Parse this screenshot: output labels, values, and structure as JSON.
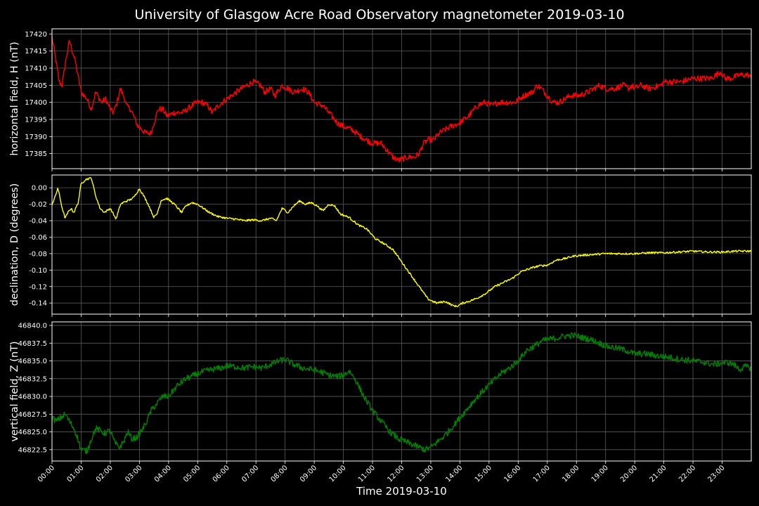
{
  "title": "University of Glasgow Acre Road Observatory magnetometer 2019-03-10",
  "xlabel": "Time 2019-03-10",
  "chart_data": [
    {
      "type": "line",
      "title": "University of Glasgow Acre Road Observatory magnetometer 2019-03-10",
      "ylabel": "horizontal field, H (nT)",
      "color": "#ff0000",
      "ylim": [
        17380.6,
        17421.5
      ],
      "yticks": [
        17385,
        17390,
        17395,
        17400,
        17405,
        17410,
        17415,
        17420
      ],
      "ytick_decimals": 0,
      "noise": 0.9,
      "x": [
        0,
        0.1,
        0.25,
        0.35,
        0.45,
        0.6,
        0.7,
        0.8,
        1.0,
        1.1,
        1.2,
        1.35,
        1.5,
        1.7,
        1.85,
        2.0,
        2.1,
        2.2,
        2.35,
        2.5,
        2.55,
        2.7,
        2.8,
        2.95,
        3.1,
        3.2,
        3.4,
        3.5,
        3.65,
        3.8,
        3.95,
        4.2,
        4.5,
        4.8,
        5.0,
        5.15,
        5.35,
        5.5,
        5.7,
        6.0,
        6.5,
        6.9,
        7.15,
        7.3,
        7.5,
        7.65,
        7.9,
        8.1,
        8.3,
        8.6,
        8.8,
        9.0,
        9.3,
        9.6,
        9.8,
        10.0,
        10.3,
        10.6,
        11.0,
        11.3,
        11.5,
        11.7,
        11.9,
        12.2,
        12.45,
        12.6,
        12.75,
        12.9,
        13.1,
        13.3,
        13.5,
        13.7,
        14.0,
        14.3,
        14.6,
        14.85,
        15.1,
        15.3,
        15.6,
        15.9,
        16.2,
        16.5,
        16.65,
        16.8,
        17.0,
        17.2,
        17.4,
        17.6,
        17.8,
        18.1,
        18.4,
        18.6,
        18.8,
        19.0,
        19.3,
        19.6,
        19.8,
        19.9,
        20.0,
        20.2,
        20.5,
        20.9,
        21.0,
        21.3,
        21.6,
        22.0,
        22.4,
        22.6,
        22.8,
        22.95,
        23.1,
        23.3,
        23.6,
        23.9,
        24.0
      ],
      "y": [
        17419,
        17414,
        17406,
        17405,
        17411,
        17418,
        17415,
        17412,
        17403,
        17402,
        17401,
        17398,
        17403,
        17400,
        17401,
        17398,
        17397,
        17399,
        17404,
        17401,
        17399,
        17398,
        17396,
        17393,
        17392,
        17391,
        17391,
        17394,
        17398,
        17398,
        17396,
        17397,
        17397,
        17399,
        17400,
        17400,
        17399,
        17397,
        17399,
        17401,
        17404,
        17406,
        17405,
        17403,
        17404,
        17402,
        17405,
        17404,
        17403,
        17404,
        17403,
        17400,
        17399,
        17396,
        17394,
        17393,
        17392,
        17390,
        17388,
        17388,
        17386,
        17384,
        17383,
        17384,
        17384,
        17385,
        17388,
        17389,
        17389,
        17391,
        17392,
        17393,
        17394,
        17396,
        17399,
        17400,
        17399,
        17400,
        17400,
        17400,
        17402,
        17403,
        17405,
        17404,
        17402,
        17400,
        17400,
        17401,
        17402,
        17402,
        17403,
        17404,
        17405,
        17404,
        17404,
        17405,
        17404,
        17405,
        17404,
        17405,
        17404,
        17405,
        17406,
        17406,
        17406,
        17407,
        17407,
        17407,
        17408,
        17409,
        17407,
        17407,
        17408,
        17408,
        17407
      ]
    },
    {
      "type": "line",
      "ylabel": "declination, D (degrees)",
      "color": "#ffff00",
      "ylim": [
        -0.1535,
        0.0155
      ],
      "yticks": [
        -0.14,
        -0.12,
        -0.1,
        -0.08,
        -0.06,
        -0.04,
        -0.02,
        0.0
      ],
      "ytick_decimals": 2,
      "noise": 0.0012,
      "x": [
        0,
        0.12,
        0.2,
        0.35,
        0.45,
        0.55,
        0.65,
        0.75,
        0.9,
        1.0,
        1.15,
        1.35,
        1.5,
        1.65,
        1.8,
        2.0,
        2.2,
        2.35,
        2.5,
        2.65,
        2.8,
        3.0,
        3.15,
        3.3,
        3.5,
        3.6,
        3.75,
        3.95,
        4.2,
        4.45,
        4.6,
        4.8,
        5.0,
        5.2,
        5.4,
        5.7,
        6.0,
        6.3,
        6.6,
        6.9,
        7.2,
        7.5,
        7.7,
        7.9,
        8.1,
        8.3,
        8.5,
        8.7,
        8.9,
        9.1,
        9.3,
        9.5,
        9.7,
        9.9,
        10.2,
        10.5,
        10.8,
        11.1,
        11.4,
        11.7,
        12.0,
        12.3,
        12.6,
        12.9,
        13.2,
        13.5,
        13.75,
        13.9,
        14.1,
        14.3,
        14.6,
        14.9,
        15.2,
        15.5,
        15.8,
        16.1,
        16.4,
        16.7,
        17.0,
        17.3,
        17.6,
        17.9,
        18.2,
        18.6,
        19.0,
        19.5,
        20.0,
        20.5,
        21.0,
        21.5,
        22.0,
        22.5,
        23.0,
        23.5,
        24.0
      ],
      "y": [
        -0.02,
        -0.01,
        0.0,
        -0.025,
        -0.037,
        -0.03,
        -0.025,
        -0.03,
        -0.018,
        0.005,
        0.01,
        0.012,
        -0.01,
        -0.025,
        -0.03,
        -0.025,
        -0.038,
        -0.02,
        -0.017,
        -0.015,
        -0.012,
        -0.001,
        -0.01,
        -0.02,
        -0.036,
        -0.032,
        -0.015,
        -0.013,
        -0.02,
        -0.03,
        -0.022,
        -0.018,
        -0.02,
        -0.025,
        -0.03,
        -0.035,
        -0.037,
        -0.038,
        -0.04,
        -0.039,
        -0.04,
        -0.037,
        -0.04,
        -0.025,
        -0.03,
        -0.022,
        -0.016,
        -0.02,
        -0.018,
        -0.022,
        -0.028,
        -0.02,
        -0.022,
        -0.032,
        -0.036,
        -0.045,
        -0.05,
        -0.062,
        -0.068,
        -0.075,
        -0.09,
        -0.105,
        -0.12,
        -0.135,
        -0.14,
        -0.138,
        -0.143,
        -0.144,
        -0.14,
        -0.138,
        -0.134,
        -0.128,
        -0.12,
        -0.115,
        -0.11,
        -0.102,
        -0.098,
        -0.095,
        -0.094,
        -0.088,
        -0.086,
        -0.083,
        -0.082,
        -0.081,
        -0.08,
        -0.08,
        -0.08,
        -0.079,
        -0.079,
        -0.078,
        -0.077,
        -0.078,
        -0.078,
        -0.077,
        -0.077
      ]
    },
    {
      "type": "line",
      "ylabel": "vertical field, Z (nT)",
      "color": "#008000",
      "ylim": [
        46820.9,
        46840.5
      ],
      "yticks": [
        46822.5,
        46825.0,
        46827.5,
        46830.0,
        46832.5,
        46835.0,
        46837.5,
        46840.0
      ],
      "ytick_decimals": 1,
      "noise": 0.45,
      "x": [
        0,
        0.15,
        0.3,
        0.45,
        0.6,
        0.75,
        0.85,
        1.0,
        1.2,
        1.35,
        1.5,
        1.65,
        1.8,
        2.0,
        2.15,
        2.3,
        2.45,
        2.6,
        2.75,
        2.9,
        3.1,
        3.25,
        3.4,
        3.6,
        3.8,
        4.0,
        4.3,
        4.6,
        4.9,
        5.2,
        5.5,
        5.8,
        6.0,
        6.3,
        6.6,
        6.9,
        7.2,
        7.5,
        7.8,
        8.0,
        8.3,
        8.6,
        8.9,
        9.2,
        9.5,
        9.8,
        10.0,
        10.2,
        10.4,
        10.7,
        11.0,
        11.3,
        11.6,
        11.9,
        12.2,
        12.5,
        12.8,
        13.0,
        13.2,
        13.4,
        13.6,
        13.9,
        14.2,
        14.5,
        14.8,
        15.1,
        15.4,
        15.7,
        16.0,
        16.3,
        16.6,
        16.8,
        17.0,
        17.3,
        17.6,
        17.9,
        18.2,
        18.5,
        18.8,
        19.1,
        19.4,
        19.7,
        20.0,
        20.4,
        20.8,
        21.2,
        21.6,
        22.0,
        22.4,
        22.7,
        23.0,
        23.2,
        23.4,
        23.6,
        23.8,
        24.0
      ],
      "y": [
        46827,
        46826.5,
        46827,
        46827.5,
        46826.5,
        46825.5,
        46824.5,
        46822.5,
        46822.3,
        46824,
        46825.5,
        46825.2,
        46824.8,
        46825.2,
        46823.5,
        46822.8,
        46823.5,
        46825,
        46824,
        46824.2,
        46825.3,
        46826.5,
        46828,
        46829,
        46830,
        46830,
        46831.5,
        46832.5,
        46833,
        46833.5,
        46833.8,
        46834,
        46834.3,
        46834.2,
        46834,
        46834.2,
        46834,
        46834.5,
        46835,
        46835.2,
        46834.5,
        46834,
        46833.8,
        46833.5,
        46833,
        46832.8,
        46833,
        46833.6,
        46832.5,
        46830,
        46828,
        46826.5,
        46825,
        46824,
        46823.5,
        46823,
        46822.5,
        46822.8,
        46823.5,
        46824.2,
        46825,
        46826.5,
        46828,
        46829.5,
        46830.8,
        46832,
        46833.2,
        46834,
        46835,
        46836.5,
        46837.2,
        46837.8,
        46838,
        46838.2,
        46838.5,
        46838.6,
        46838.3,
        46838,
        46837.5,
        46837,
        46836.8,
        46836.5,
        46836,
        46836,
        46835.7,
        46835.5,
        46835.2,
        46835,
        46834.8,
        46834.5,
        46834.7,
        46834.8,
        46834.5,
        46833.8,
        46834.2,
        46834
      ]
    }
  ],
  "xticks": [
    "00:00",
    "01:00",
    "02:00",
    "03:00",
    "04:00",
    "05:00",
    "06:00",
    "07:00",
    "08:00",
    "09:00",
    "10:00",
    "11:00",
    "12:00",
    "13:00",
    "14:00",
    "15:00",
    "16:00",
    "17:00",
    "18:00",
    "19:00",
    "20:00",
    "21:00",
    "22:00",
    "23:00"
  ],
  "xlim_hours": [
    0,
    24
  ]
}
